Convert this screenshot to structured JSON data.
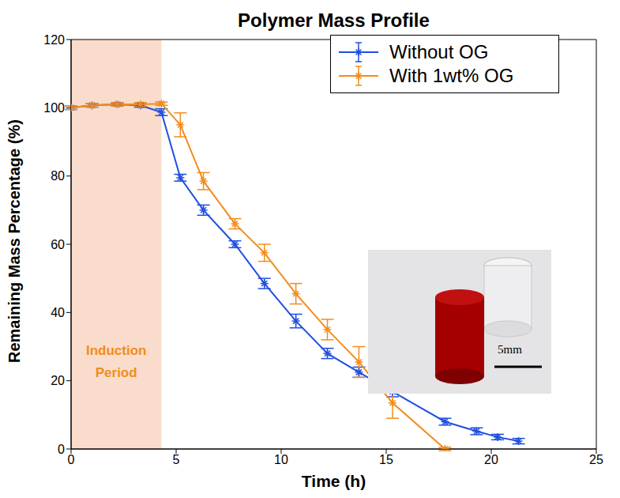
{
  "chart_data": {
    "type": "line",
    "title": "Polymer Mass Profile",
    "x_label": "Time (h)",
    "y_label": "Remaining Mass Percentage (%)",
    "xlim": [
      0,
      25
    ],
    "xticks": [
      0,
      5,
      10,
      15,
      20,
      25
    ],
    "ylim": [
      0,
      120
    ],
    "yticks": [
      0,
      20,
      40,
      60,
      80,
      100,
      120
    ],
    "grid": false,
    "legend": "top-right",
    "annotations": [
      {
        "text": "Induction Period",
        "x_range": [
          0,
          4.3
        ]
      },
      {
        "text": "5mm"
      }
    ],
    "series": [
      {
        "name": "Without OG",
        "color": "#1f4fe0",
        "marker": "asterisk",
        "line_style": "solid",
        "x": [
          0,
          1,
          2.2,
          3.3,
          4.3,
          5.2,
          6.3,
          7.8,
          9.2,
          10.7,
          12.2,
          13.7,
          15.3,
          17.8,
          19.3,
          20.3,
          21.3
        ],
        "values": [
          100,
          100.7,
          101,
          100.7,
          98.7,
          79.5,
          70,
          60,
          48.5,
          37.5,
          28,
          22.5,
          16.8,
          8,
          5.2,
          3.5,
          2.3
        ],
        "error": [
          0.5,
          0.5,
          0.5,
          0.5,
          1,
          1,
          1.5,
          1,
          1.5,
          2,
          1.5,
          1.5,
          1.5,
          1,
          1,
          0.8,
          0.8
        ]
      },
      {
        "name": "With 1wt% OG",
        "color": "#f28c1a",
        "marker": "asterisk",
        "line_style": "solid",
        "x": [
          0,
          1,
          2.2,
          3.3,
          4.3,
          5.2,
          6.3,
          7.8,
          9.2,
          10.7,
          12.2,
          13.7,
          15.3,
          17.8
        ],
        "values": [
          100,
          100.7,
          101,
          101,
          101.2,
          95,
          78.5,
          66,
          57.5,
          45.5,
          35,
          25.5,
          13.5,
          0
        ],
        "error": [
          0.5,
          0.5,
          0.5,
          0.5,
          0.5,
          3.5,
          2.5,
          1.5,
          2.5,
          3,
          3,
          4.5,
          4.5,
          0.5
        ]
      }
    ]
  }
}
